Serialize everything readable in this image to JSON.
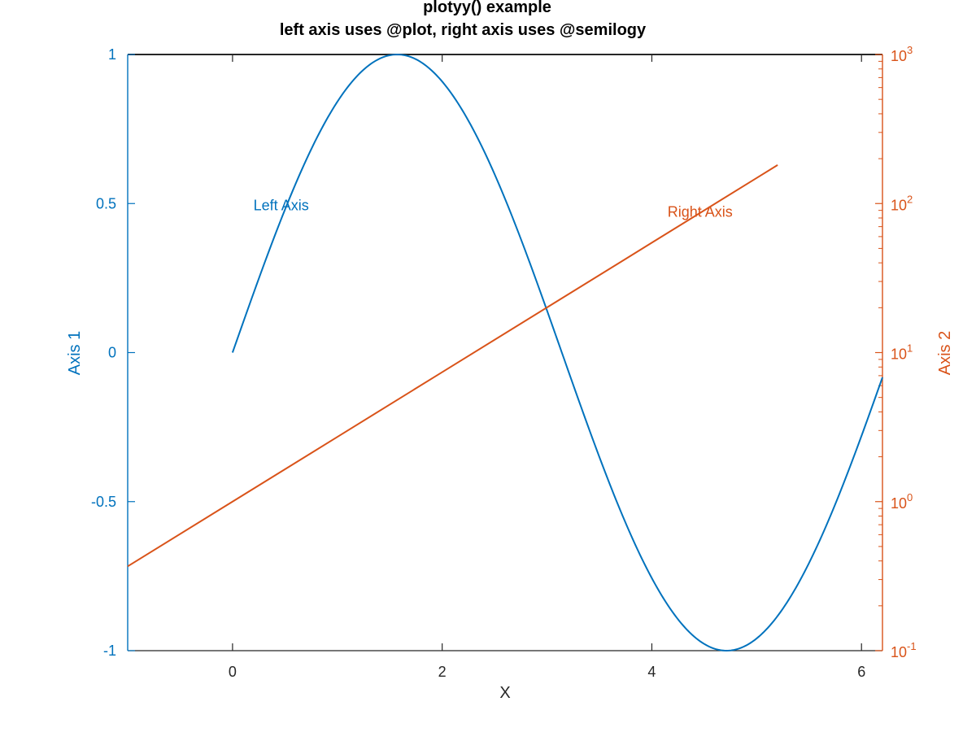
{
  "chart_data": {
    "type": "line",
    "title": "plotyy() example",
    "subtitle": "left axis uses @plot, right axis uses @semilogy",
    "xlabel": "X",
    "xlim": [
      -1,
      6.2
    ],
    "x_ticks": [
      0,
      2,
      4,
      6
    ],
    "x_tick_labels": [
      "0",
      "2",
      "4",
      "6"
    ],
    "left_axis": {
      "label": "Axis 1",
      "scale": "linear",
      "ylim": [
        -1,
        1
      ],
      "ticks": [
        -1,
        -0.5,
        0,
        0.5,
        1
      ],
      "tick_labels": [
        "-1",
        "-0.5",
        "0",
        "0.5",
        "1"
      ],
      "color": "#0072BD"
    },
    "right_axis": {
      "label": "Axis 2",
      "scale": "log",
      "ylim": [
        0.1,
        1000
      ],
      "ticks": [
        0.1,
        1,
        10,
        100,
        1000
      ],
      "tick_labels": [
        {
          "base": "10",
          "exp": "-1"
        },
        {
          "base": "10",
          "exp": "0"
        },
        {
          "base": "10",
          "exp": "1"
        },
        {
          "base": "10",
          "exp": "2"
        },
        {
          "base": "10",
          "exp": "3"
        }
      ],
      "color": "#D95319"
    },
    "series": [
      {
        "axis": "left",
        "color": "#0072BD",
        "x": [
          0,
          0.2,
          0.4,
          0.6,
          0.8,
          1.0,
          1.2,
          1.4,
          1.5708,
          1.8,
          2.0,
          2.2,
          2.4,
          2.6,
          2.8,
          3.0,
          3.2,
          3.4,
          3.6,
          3.8,
          4.0,
          4.2,
          4.4,
          4.6,
          4.7124,
          4.8,
          5.0,
          5.2,
          5.4,
          5.6,
          5.8,
          6.0,
          6.2
        ],
        "y": [
          0,
          0.199,
          0.389,
          0.565,
          0.717,
          0.841,
          0.932,
          0.985,
          1.0,
          0.974,
          0.909,
          0.808,
          0.675,
          0.516,
          0.335,
          0.141,
          -0.058,
          -0.256,
          -0.443,
          -0.612,
          -0.757,
          -0.872,
          -0.952,
          -0.994,
          -1.0,
          -0.996,
          -0.959,
          -0.883,
          -0.773,
          -0.631,
          -0.465,
          -0.279,
          -0.083
        ]
      },
      {
        "axis": "right",
        "color": "#D95319",
        "x": [
          -1,
          0,
          1,
          2,
          3,
          4,
          5,
          5.2
        ],
        "y": [
          0.368,
          1.0,
          2.718,
          7.389,
          20.086,
          54.598,
          148.41,
          181.27
        ]
      }
    ],
    "annotations": [
      {
        "text": "Left Axis",
        "x": 0.2,
        "y": 0.5,
        "axis": "left",
        "color": "#0072BD"
      },
      {
        "text": "Right Axis",
        "x": 4.15,
        "y": 90,
        "axis": "right",
        "color": "#D95319"
      }
    ],
    "grid": false
  }
}
